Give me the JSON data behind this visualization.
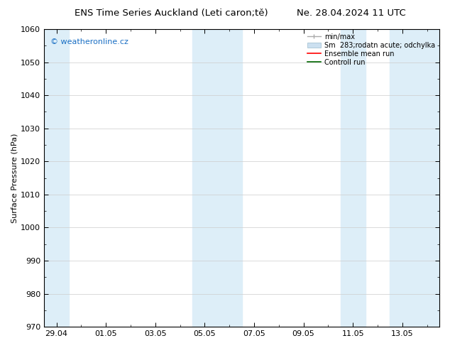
{
  "title_left": "ENS Time Series Auckland (Leti caron;tě)",
  "title_right": "Ne. 28.04.2024 11 UTC",
  "ylabel": "Surface Pressure (hPa)",
  "ylim": [
    970,
    1060
  ],
  "yticks": [
    970,
    980,
    990,
    1000,
    1010,
    1020,
    1030,
    1040,
    1050,
    1060
  ],
  "xtick_labels": [
    "29.04",
    "01.05",
    "03.05",
    "05.05",
    "07.05",
    "09.05",
    "11.05",
    "13.05"
  ],
  "xtick_positions": [
    0,
    2,
    4,
    6,
    8,
    10,
    12,
    14
  ],
  "xlim": [
    -0.5,
    15.5
  ],
  "background_color": "#ffffff",
  "shaded_color": "#ddeef8",
  "watermark_text": "© weatheronline.cz",
  "watermark_color": "#1a6fc4",
  "legend_entries": [
    "min/max",
    "Sm  283;rodatn acute; odchylka",
    "Ensemble mean run",
    "Controll run"
  ],
  "grid_color": "#cccccc",
  "font_size_title": 9.5,
  "font_size_axis": 8,
  "font_size_ticks": 8,
  "font_size_legend": 7,
  "font_size_watermark": 8
}
